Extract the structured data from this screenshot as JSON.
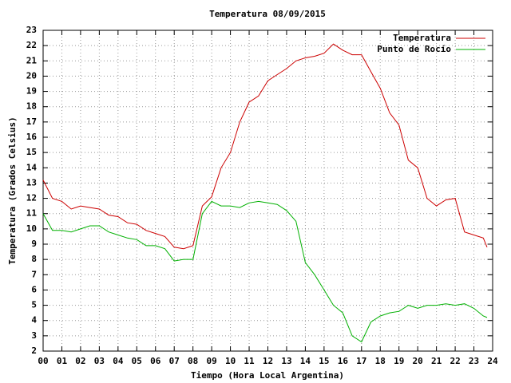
{
  "chart_data": {
    "type": "line",
    "title": "Temperatura 08/09/2015",
    "x_label": "Tiempo (Hora Local Argentina)",
    "y_label": "Temperatura (Grados Celsius)",
    "x": [
      0,
      0.5,
      1,
      1.5,
      2,
      2.5,
      3,
      3.5,
      4,
      4.5,
      5,
      5.5,
      6,
      6.5,
      7,
      7.5,
      8,
      8.5,
      9,
      9.5,
      10,
      10.5,
      11,
      11.5,
      12,
      12.5,
      13,
      13.5,
      14,
      14.5,
      15,
      15.5,
      16,
      16.5,
      17,
      17.5,
      18,
      18.5,
      19,
      19.5,
      20,
      20.5,
      21,
      21.5,
      22,
      22.5,
      23,
      23.5,
      23.7
    ],
    "series": [
      {
        "name": "Temperatura",
        "color": "#cc0000",
        "values": [
          13.2,
          12.0,
          11.8,
          11.3,
          11.5,
          11.4,
          11.3,
          10.9,
          10.8,
          10.4,
          10.3,
          9.9,
          9.7,
          9.5,
          8.8,
          8.7,
          8.9,
          11.5,
          12.1,
          14.0,
          15.0,
          17.0,
          18.3,
          18.7,
          19.7,
          20.1,
          20.5,
          21.0,
          21.2,
          21.3,
          21.5,
          22.1,
          21.7,
          21.4,
          21.4,
          20.3,
          19.2,
          17.6,
          16.8,
          14.5,
          14.0,
          12.0,
          11.5,
          11.9,
          12.0,
          9.8,
          9.6,
          9.4,
          8.8
        ]
      },
      {
        "name": "Punto de Rocío",
        "color": "#00b000",
        "values": [
          11.0,
          9.9,
          9.9,
          9.8,
          10.0,
          10.2,
          10.2,
          9.8,
          9.6,
          9.4,
          9.3,
          8.9,
          8.9,
          8.7,
          7.9,
          8.0,
          8.0,
          11.0,
          11.8,
          11.5,
          11.5,
          11.4,
          11.7,
          11.8,
          11.7,
          11.6,
          11.2,
          10.5,
          7.8,
          7.0,
          6.0,
          5.0,
          4.5,
          3.0,
          2.6,
          3.9,
          4.3,
          4.5,
          4.6,
          5.0,
          4.8,
          5.0,
          5.0,
          5.1,
          5.0,
          5.1,
          4.8,
          4.3,
          4.2
        ]
      }
    ],
    "xlim": [
      0,
      24
    ],
    "xticks": [
      {
        "value": 0,
        "label": "00"
      },
      {
        "value": 1,
        "label": "01"
      },
      {
        "value": 2,
        "label": "02"
      },
      {
        "value": 3,
        "label": "03"
      },
      {
        "value": 4,
        "label": "04"
      },
      {
        "value": 5,
        "label": "05"
      },
      {
        "value": 6,
        "label": "06"
      },
      {
        "value": 7,
        "label": "07"
      },
      {
        "value": 8,
        "label": "08"
      },
      {
        "value": 9,
        "label": "09"
      },
      10,
      11,
      12,
      13,
      14,
      15,
      16,
      17,
      18,
      19,
      20,
      21,
      22,
      23,
      24
    ],
    "ylim": [
      2,
      23
    ],
    "yticks": [
      2,
      3,
      4,
      5,
      6,
      7,
      8,
      9,
      10,
      11,
      12,
      13,
      14,
      15,
      16,
      17,
      18,
      19,
      20,
      21,
      22,
      23
    ],
    "grid": true,
    "legend": "top-right"
  }
}
